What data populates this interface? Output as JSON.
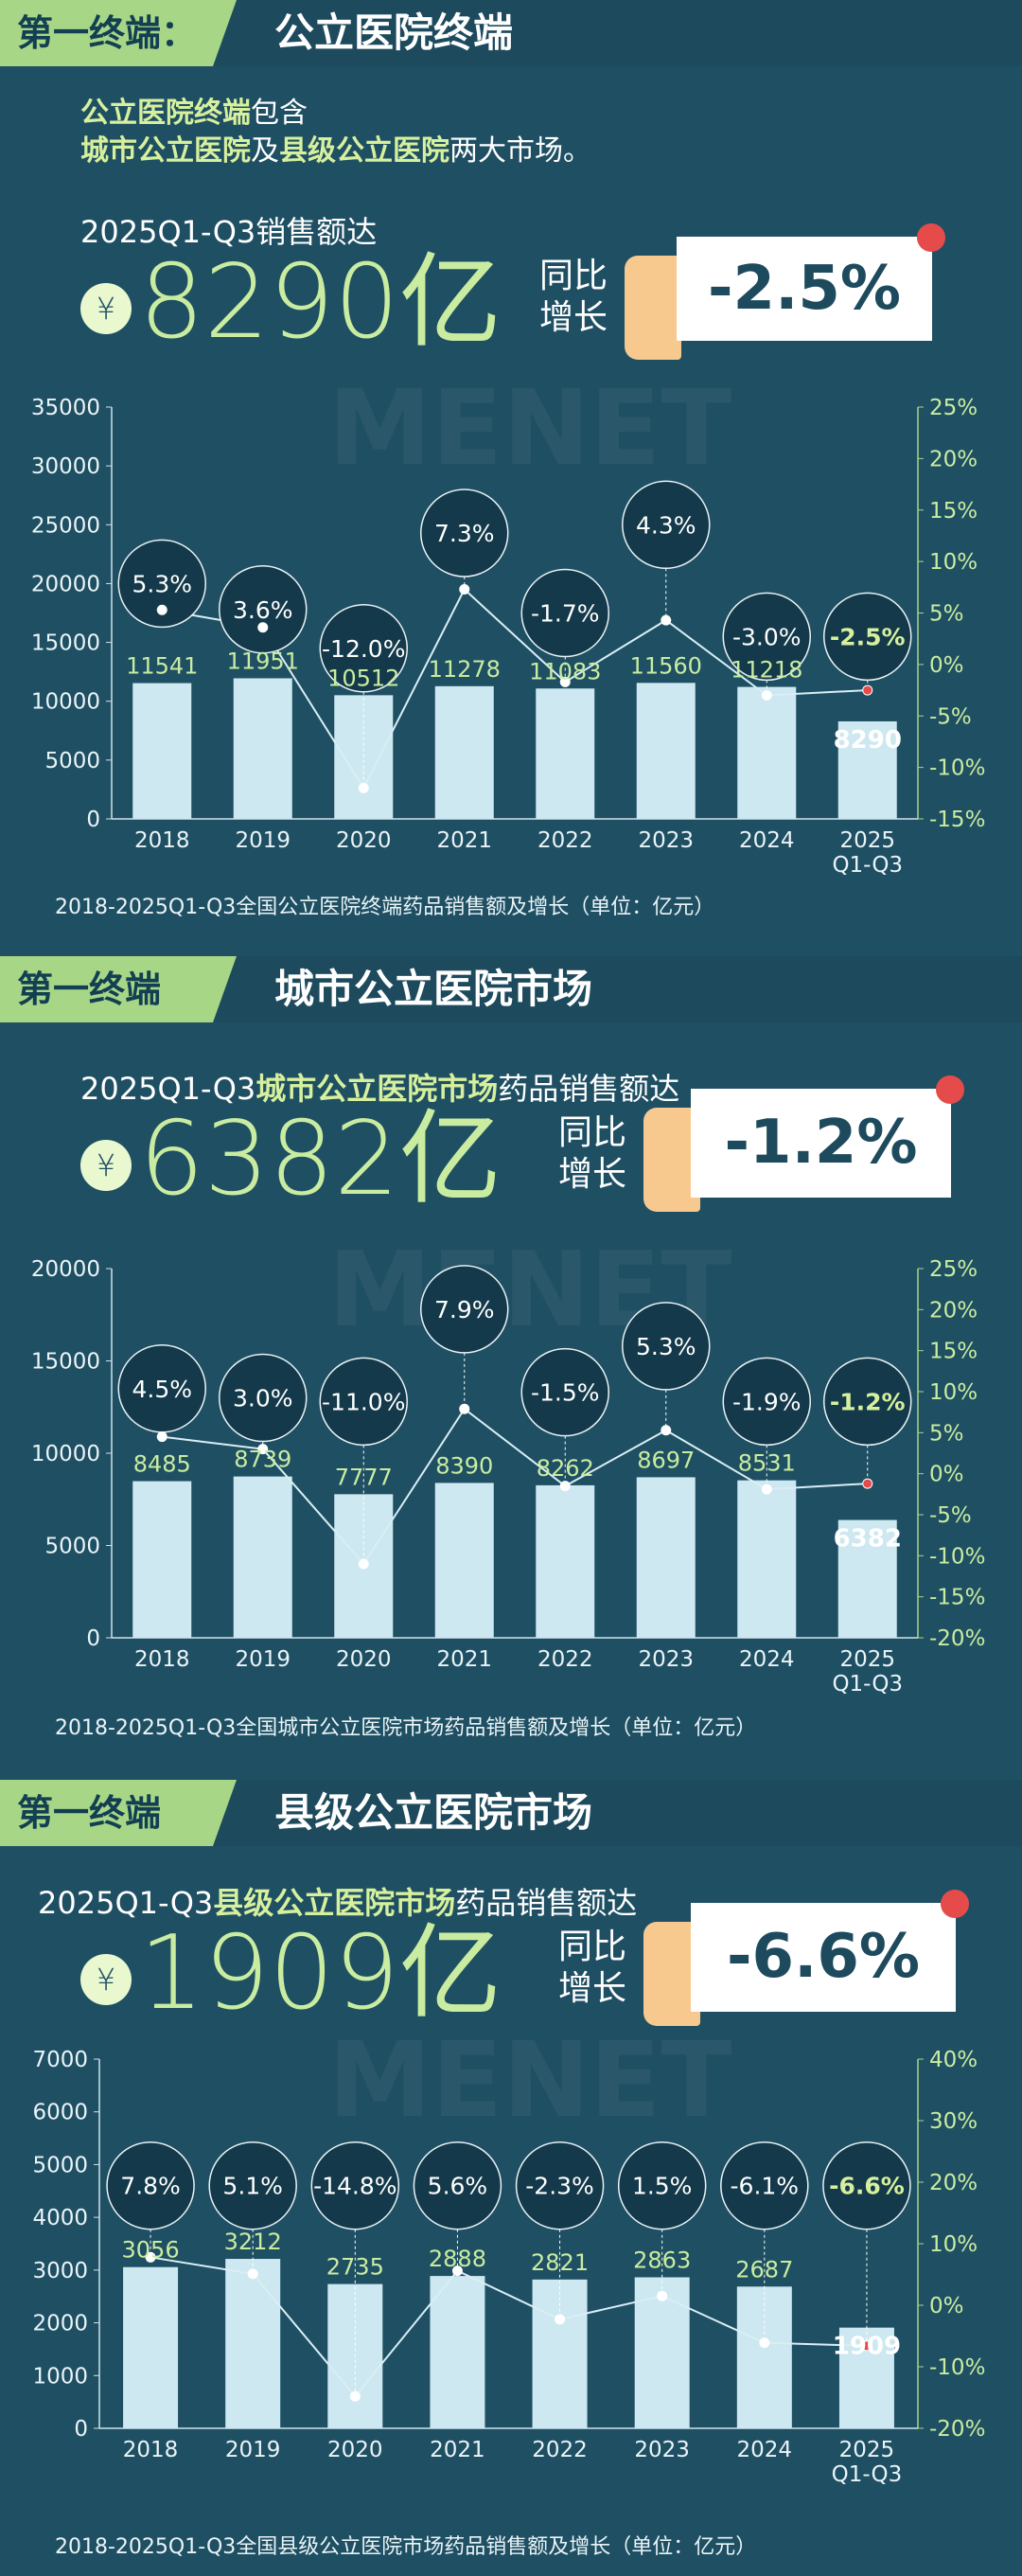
{
  "sections": [
    {
      "header_label": "第一终端：",
      "header_title": "公立医院终端",
      "intro_line1_hl": "公立医院终端",
      "intro_line1_rest": "包含",
      "intro_line2_a": "城市公立医院",
      "intro_line2_b": "及",
      "intro_line2_c": "县级公立医院",
      "intro_line2_d": "两大市场。",
      "subtitle_pre": "2025Q1-Q3销售额达",
      "subtitle_hl": "",
      "subtitle_post": "",
      "big_value": "8290亿",
      "yoy_label1": "同比",
      "yoy_label2": "增长",
      "yoy_value": "-2.5%",
      "footnote": "2018-2025Q1-Q3全国公立医院终端药品销售额及增长（单位：亿元）"
    },
    {
      "header_label": "第一终端",
      "header_title": "城市公立医院市场",
      "subtitle_pre": "2025Q1-Q3",
      "subtitle_hl": "城市公立医院市场",
      "subtitle_post": "药品销售额达",
      "big_value": "6382亿",
      "yoy_label1": "同比",
      "yoy_label2": "增长",
      "yoy_value": "-1.2%",
      "footnote": "2018-2025Q1-Q3全国城市公立医院市场药品销售额及增长（单位：亿元）"
    },
    {
      "header_label": "第一终端",
      "header_title": "县级公立医院市场",
      "subtitle_pre": "2025Q1-Q3",
      "subtitle_hl": "县级公立医院市场",
      "subtitle_post": "药品销售额达",
      "big_value": "1909亿",
      "yoy_label1": "同比",
      "yoy_label2": "增长",
      "yoy_value": "-6.6%",
      "footnote": "2018-2025Q1-Q3全国县级公立医院市场药品销售额及增长（单位：亿元）"
    }
  ],
  "yen_symbol": "¥",
  "watermark": "MENET",
  "colors": {
    "background": "#1f4f63",
    "bar": "#cde8f0",
    "accent": "#a8d687",
    "value_text": "#c9eca1",
    "line": "#d9eef5",
    "highlight_bar_label": "#d7f09d"
  },
  "chart_data": [
    {
      "type": "bar",
      "categories": [
        "2018",
        "2019",
        "2020",
        "2021",
        "2022",
        "2023",
        "2024",
        "2025\nQ1-Q3"
      ],
      "series": [
        {
          "values": [
            11541,
            11951,
            10512,
            11278,
            11083,
            11560,
            11218,
            8290
          ]
        },
        {
          "values": [
            5.3,
            3.6,
            -12.0,
            7.3,
            -1.7,
            4.3,
            -3.0,
            -2.5
          ]
        }
      ],
      "left_ticks": [
        "0",
        "5000",
        "10000",
        "15000",
        "20000",
        "25000",
        "30000",
        "35000"
      ],
      "right_ticks": [
        "-15%",
        "-10%",
        "-5%",
        "0%",
        "5%",
        "10%",
        "15%",
        "20%",
        "25%"
      ],
      "ylim": [
        0,
        35000
      ],
      "y2lim": [
        -15,
        25
      ],
      "growth_labels": [
        "5.3%",
        "3.6%",
        "-12.0%",
        "7.3%",
        "-1.7%",
        "4.3%",
        "-3.0%",
        "-2.5%"
      ],
      "bubble_y2": [
        20000,
        17800,
        14500,
        24300,
        17500,
        25000,
        15500,
        15500
      ]
    },
    {
      "type": "bar",
      "categories": [
        "2018",
        "2019",
        "2020",
        "2021",
        "2022",
        "2023",
        "2024",
        "2025\nQ1-Q3"
      ],
      "series": [
        {
          "values": [
            8485,
            8739,
            7777,
            8390,
            8262,
            8697,
            8531,
            6382
          ]
        },
        {
          "values": [
            4.5,
            3.0,
            -11.0,
            7.9,
            -1.5,
            5.3,
            -1.9,
            -1.2
          ]
        }
      ],
      "left_ticks": [
        "0",
        "5000",
        "10000",
        "15000",
        "20000"
      ],
      "right_ticks": [
        "-20%",
        "-15%",
        "-10%",
        "-5%",
        "0%",
        "5%",
        "10%",
        "15%",
        "20%",
        "25%"
      ],
      "ylim": [
        0,
        20000
      ],
      "y2lim": [
        -20,
        25
      ],
      "growth_labels": [
        "4.5%",
        "3.0%",
        "-11.0%",
        "7.9%",
        "-1.5%",
        "5.3%",
        "-1.9%",
        "-1.2%"
      ],
      "bubble_y2": [
        13500,
        13000,
        12800,
        17800,
        13300,
        15800,
        12800,
        12800
      ]
    },
    {
      "type": "bar",
      "categories": [
        "2018",
        "2019",
        "2020",
        "2021",
        "2022",
        "2023",
        "2024",
        "2025\nQ1-Q3"
      ],
      "series": [
        {
          "values": [
            3056,
            3212,
            2735,
            2888,
            2821,
            2863,
            2687,
            1909
          ]
        },
        {
          "values": [
            7.8,
            5.1,
            -14.8,
            5.6,
            -2.3,
            1.5,
            -6.1,
            -6.6
          ]
        }
      ],
      "left_ticks": [
        "0",
        "1000",
        "2000",
        "3000",
        "4000",
        "5000",
        "6000",
        "7000"
      ],
      "right_ticks": [
        "-20%",
        "-10%",
        "0%",
        "10%",
        "20%",
        "30%",
        "40%"
      ],
      "ylim": [
        0,
        7000
      ],
      "y2lim": [
        -20,
        40
      ],
      "growth_labels": [
        "7.8%",
        "5.1%",
        "-14.8%",
        "5.6%",
        "-2.3%",
        "1.5%",
        "-6.1%",
        "-6.6%"
      ],
      "bubble_y2": [
        4600,
        4600,
        4600,
        4600,
        4600,
        4600,
        4600,
        4600
      ]
    }
  ]
}
